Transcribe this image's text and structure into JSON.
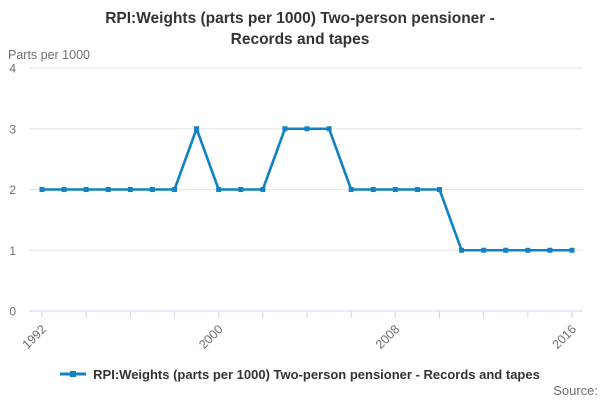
{
  "header": {
    "title_lines": [
      "RPI:Weights (parts per 1000) Two-person pensioner -",
      "Records and tapes"
    ]
  },
  "legend": {
    "label": "RPI:Weights (parts per 1000) Two-person pensioner - Records and tapes"
  },
  "source_label": "Source:",
  "colors": {
    "series": "#1182c3",
    "grid": "#e6e6e6",
    "axis": "#ccd6eb",
    "muted_text": "#6f6f6f",
    "title_text": "#333333"
  },
  "chart_data": {
    "type": "line",
    "title": "RPI:Weights (parts per 1000) Two-person pensioner - Records and tapes",
    "xlabel": "",
    "ylabel": "Parts per 1000",
    "x": [
      1992,
      1993,
      1994,
      1995,
      1996,
      1997,
      1998,
      1999,
      2000,
      2001,
      2002,
      2003,
      2004,
      2005,
      2006,
      2007,
      2008,
      2009,
      2010,
      2011,
      2012,
      2013,
      2014,
      2015,
      2016
    ],
    "series": [
      {
        "name": "RPI:Weights (parts per 1000) Two-person pensioner - Records and tapes",
        "values": [
          2,
          2,
          2,
          2,
          2,
          2,
          2,
          3,
          2,
          2,
          2,
          3,
          3,
          3,
          2,
          2,
          2,
          2,
          2,
          1,
          1,
          1,
          1,
          1,
          1
        ]
      }
    ],
    "ylim": [
      0,
      4
    ],
    "yticks": [
      0,
      1,
      2,
      3,
      4
    ],
    "xtick_label_years": [
      1992,
      2000,
      2008,
      2016
    ],
    "xtick_mark_every_years": 2,
    "grid": true,
    "legend_position": "bottom",
    "marker": "square"
  }
}
